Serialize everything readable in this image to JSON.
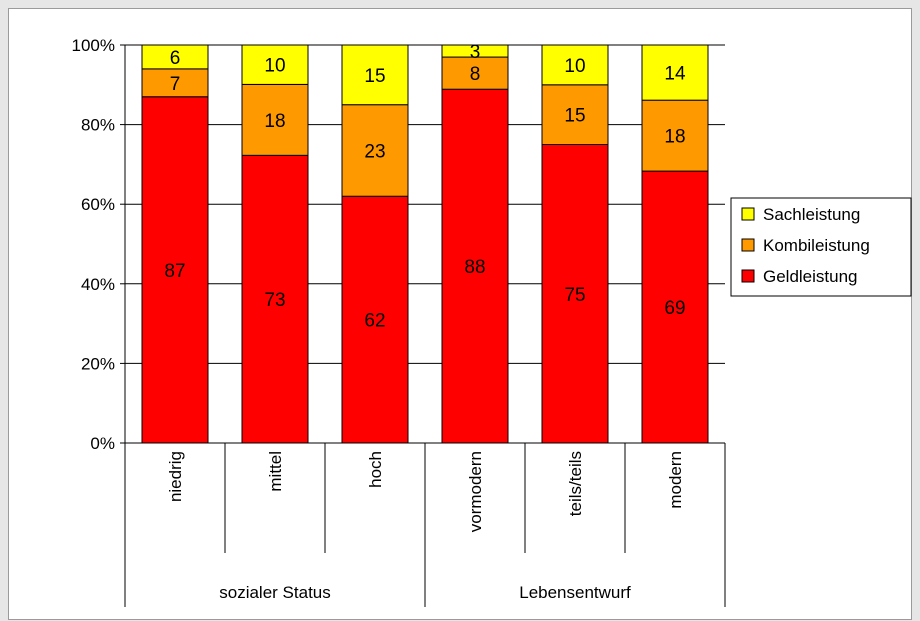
{
  "chart_data": {
    "type": "bar",
    "stacked": true,
    "percent_stacked": true,
    "categories": [
      "niedrig",
      "mittel",
      "hoch",
      "vormodern",
      "teils/teils",
      "modern"
    ],
    "groups": [
      {
        "label": "sozialer Status",
        "categories": [
          "niedrig",
          "mittel",
          "hoch"
        ]
      },
      {
        "label": "Lebensentwurf",
        "categories": [
          "vormodern",
          "teils/teils",
          "modern"
        ]
      }
    ],
    "series": [
      {
        "name": "Geldleistung",
        "color": "#ff0000",
        "values": [
          87,
          73,
          62,
          88,
          75,
          69
        ]
      },
      {
        "name": "Kombileistung",
        "color": "#ff9900",
        "values": [
          7,
          18,
          23,
          8,
          15,
          18
        ]
      },
      {
        "name": "Sachleistung",
        "color": "#ffff00",
        "values": [
          6,
          10,
          15,
          3,
          10,
          14
        ]
      }
    ],
    "y_ticks": [
      "0%",
      "20%",
      "40%",
      "60%",
      "80%",
      "100%"
    ],
    "ylim": [
      0,
      100
    ],
    "grid": true,
    "legend": {
      "position": "right",
      "entries": [
        "Sachleistung",
        "Kombileistung",
        "Geldleistung"
      ]
    }
  }
}
